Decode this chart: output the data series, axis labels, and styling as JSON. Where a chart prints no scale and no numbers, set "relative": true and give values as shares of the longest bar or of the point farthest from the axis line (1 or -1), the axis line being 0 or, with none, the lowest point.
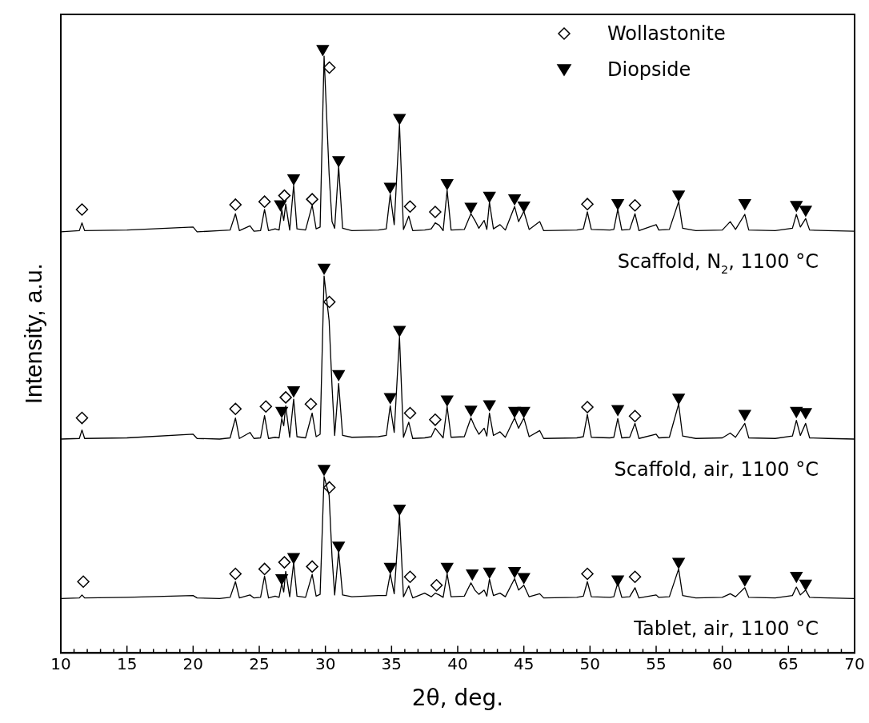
{
  "chart_data": {
    "type": "line",
    "relative": true,
    "xlabel": "2θ, deg.",
    "ylabel": "Intensity, a.u.",
    "xlim": [
      10,
      70
    ],
    "xticks": [
      10,
      {
        "value": 11,
        "label": null
      },
      {
        "value": 12,
        "label": null
      },
      {
        "value": 13,
        "label": null
      },
      {
        "value": 14,
        "label": null
      },
      15,
      {
        "value": 16,
        "label": null
      },
      {
        "value": 17,
        "label": null
      },
      {
        "value": 18,
        "label": null
      },
      {
        "value": 19,
        "label": null
      },
      20,
      {
        "value": 21,
        "label": null
      },
      {
        "value": 22,
        "label": null
      },
      {
        "value": 23,
        "label": null
      },
      {
        "value": 24,
        "label": null
      },
      25,
      {
        "value": 26,
        "label": null
      },
      {
        "value": 27,
        "label": null
      },
      {
        "value": 28,
        "label": null
      },
      {
        "value": 29,
        "label": null
      },
      30,
      {
        "value": 31,
        "label": null
      },
      {
        "value": 32,
        "label": null
      },
      {
        "value": 33,
        "label": null
      },
      {
        "value": 34,
        "label": null
      },
      35,
      {
        "value": 36,
        "label": null
      },
      {
        "value": 37,
        "label": null
      },
      {
        "value": 38,
        "label": null
      },
      {
        "value": 39,
        "label": null
      },
      40,
      {
        "value": 41,
        "label": null
      },
      {
        "value": 42,
        "label": null
      },
      {
        "value": 43,
        "label": null
      },
      {
        "value": 44,
        "label": null
      },
      45,
      {
        "value": 46,
        "label": null
      },
      {
        "value": 47,
        "label": null
      },
      {
        "value": 48,
        "label": null
      },
      {
        "value": 49,
        "label": null
      },
      50,
      {
        "value": 51,
        "label": null
      },
      {
        "value": 52,
        "label": null
      },
      {
        "value": 53,
        "label": null
      },
      {
        "value": 54,
        "label": null
      },
      55,
      {
        "value": 56,
        "label": null
      },
      {
        "value": 57,
        "label": null
      },
      {
        "value": 58,
        "label": null
      },
      {
        "value": 59,
        "label": null
      },
      60,
      {
        "value": 61,
        "label": null
      },
      {
        "value": 62,
        "label": null
      },
      {
        "value": 63,
        "label": null
      },
      {
        "value": 64,
        "label": null
      },
      65,
      {
        "value": 66,
        "label": null
      },
      {
        "value": 67,
        "label": null
      },
      {
        "value": 68,
        "label": null
      },
      {
        "value": 69,
        "label": null
      },
      70
    ],
    "legend": "top right",
    "grid": false,
    "line_style": "solid",
    "x": [
      10,
      11.4,
      11.6,
      11.8,
      15,
      20,
      20.3,
      22,
      22.8,
      23.2,
      23.5,
      24.3,
      24.6,
      25.1,
      25.4,
      25.7,
      26.2,
      26.5,
      26.7,
      26.85,
      27,
      27.3,
      27.6,
      27.85,
      28.5,
      29,
      29.3,
      29.6,
      29.9,
      30.28,
      30.5,
      30.7,
      31,
      31.3,
      32,
      34,
      34.6,
      34.9,
      35.2,
      35.6,
      35.9,
      36.3,
      36.6,
      37.5,
      38,
      38.3,
      38.6,
      38.9,
      39.2,
      39.5,
      40.5,
      41,
      41.3,
      41.6,
      42,
      42.2,
      42.4,
      42.7,
      43.2,
      43.6,
      44.3,
      44.6,
      45,
      45.4,
      46.2,
      46.5,
      49,
      49.5,
      49.8,
      50.1,
      51.5,
      51.8,
      52.1,
      52.4,
      53,
      53.4,
      53.7,
      55,
      55.2,
      56,
      56.7,
      57,
      58,
      60,
      60.6,
      61,
      61.7,
      62,
      64,
      65.3,
      65.6,
      65.9,
      66.3,
      66.6,
      68,
      70
    ],
    "series": [
      {
        "name": "Scaffold, N$_{2}$, 1100 °C",
        "marker": "none",
        "color": "#000000",
        "values": [
          0.697,
          0.699,
          0.712,
          0.699,
          0.7,
          0.705,
          0.697,
          0.699,
          0.7,
          0.727,
          0.699,
          0.707,
          0.698,
          0.699,
          0.734,
          0.699,
          0.702,
          0.7,
          0.734,
          0.716,
          0.743,
          0.7,
          0.774,
          0.702,
          0.7,
          0.741,
          0.702,
          0.705,
          0.988,
          0.793,
          0.714,
          0.703,
          0.805,
          0.703,
          0.699,
          0.7,
          0.702,
          0.759,
          0.709,
          0.874,
          0.701,
          0.723,
          0.699,
          0.7,
          0.702,
          0.712,
          0.708,
          0.699,
          0.766,
          0.7,
          0.701,
          0.727,
          0.716,
          0.703,
          0.716,
          0.701,
          0.746,
          0.702,
          0.709,
          0.7,
          0.739,
          0.714,
          0.731,
          0.701,
          0.714,
          0.699,
          0.7,
          0.702,
          0.73,
          0.701,
          0.7,
          0.701,
          0.734,
          0.7,
          0.701,
          0.727,
          0.699,
          0.709,
          0.7,
          0.701,
          0.747,
          0.703,
          0.699,
          0.7,
          0.714,
          0.701,
          0.726,
          0.7,
          0.699,
          0.703,
          0.726,
          0.705,
          0.719,
          0.7,
          0.699,
          0.698
        ]
      },
      {
        "name": "Scaffold, air, 1100 °C",
        "marker": "none",
        "color": "#000000",
        "values": [
          0.354,
          0.355,
          0.369,
          0.355,
          0.356,
          0.362,
          0.355,
          0.354,
          0.356,
          0.389,
          0.355,
          0.365,
          0.355,
          0.356,
          0.393,
          0.355,
          0.357,
          0.356,
          0.388,
          0.376,
          0.409,
          0.357,
          0.42,
          0.358,
          0.356,
          0.397,
          0.358,
          0.362,
          0.624,
          0.55,
          0.442,
          0.36,
          0.446,
          0.36,
          0.357,
          0.358,
          0.36,
          0.409,
          0.365,
          0.523,
          0.357,
          0.382,
          0.355,
          0.356,
          0.358,
          0.372,
          0.364,
          0.356,
          0.408,
          0.357,
          0.358,
          0.389,
          0.374,
          0.362,
          0.372,
          0.359,
          0.397,
          0.36,
          0.366,
          0.357,
          0.389,
          0.372,
          0.389,
          0.358,
          0.368,
          0.355,
          0.356,
          0.358,
          0.395,
          0.357,
          0.356,
          0.357,
          0.388,
          0.356,
          0.357,
          0.38,
          0.355,
          0.362,
          0.356,
          0.357,
          0.412,
          0.359,
          0.355,
          0.356,
          0.364,
          0.357,
          0.38,
          0.356,
          0.355,
          0.359,
          0.385,
          0.36,
          0.38,
          0.356,
          0.355,
          0.354
        ]
      },
      {
        "name": "Tablet, air, 1100 °C",
        "marker": "none",
        "color": "#000000",
        "values": [
          0.09,
          0.091,
          0.096,
          0.091,
          0.092,
          0.095,
          0.091,
          0.09,
          0.092,
          0.118,
          0.091,
          0.096,
          0.091,
          0.092,
          0.127,
          0.091,
          0.094,
          0.092,
          0.115,
          0.101,
          0.135,
          0.093,
          0.149,
          0.094,
          0.092,
          0.13,
          0.094,
          0.097,
          0.292,
          0.261,
          0.159,
          0.096,
          0.168,
          0.096,
          0.093,
          0.095,
          0.095,
          0.131,
          0.098,
          0.228,
          0.093,
          0.111,
          0.091,
          0.099,
          0.093,
          0.099,
          0.096,
          0.092,
          0.131,
          0.093,
          0.094,
          0.116,
          0.104,
          0.097,
          0.104,
          0.094,
          0.122,
          0.095,
          0.099,
          0.093,
          0.123,
          0.104,
          0.112,
          0.093,
          0.098,
          0.091,
          0.092,
          0.094,
          0.118,
          0.093,
          0.092,
          0.093,
          0.116,
          0.092,
          0.093,
          0.108,
          0.091,
          0.096,
          0.092,
          0.093,
          0.139,
          0.095,
          0.091,
          0.092,
          0.098,
          0.093,
          0.108,
          0.092,
          0.091,
          0.095,
          0.109,
          0.096,
          0.104,
          0.092,
          0.091,
          0.09
        ]
      },
      {
        "name": "Wollastonite",
        "type": "scatter",
        "marker": "diamond",
        "color": "#000000",
        "x": [
          11.6,
          23.2,
          25.4,
          26.9,
          29.0,
          30.3,
          36.4,
          38.3,
          49.8,
          53.4,
          11.6,
          23.2,
          25.5,
          27.0,
          28.9,
          30.3,
          36.4,
          38.3,
          49.8,
          53.4,
          11.7,
          23.2,
          25.4,
          26.9,
          29.0,
          30.3,
          36.4,
          38.4,
          49.8,
          53.4
        ],
        "values": [
          0.734,
          0.742,
          0.747,
          0.757,
          0.751,
          0.969,
          0.739,
          0.73,
          0.743,
          0.741,
          0.389,
          0.404,
          0.408,
          0.423,
          0.412,
          0.581,
          0.397,
          0.386,
          0.407,
          0.392,
          0.118,
          0.131,
          0.139,
          0.15,
          0.143,
          0.274,
          0.126,
          0.112,
          0.131,
          0.126
        ]
      },
      {
        "name": "Diopside",
        "type": "scatter",
        "marker": "triangle",
        "color": "#000000",
        "x": [
          26.6,
          27.6,
          29.8,
          31.0,
          34.9,
          35.6,
          39.2,
          41.0,
          42.4,
          44.3,
          45.0,
          52.1,
          56.7,
          61.7,
          65.6,
          66.3,
          26.7,
          27.6,
          29.9,
          31.0,
          34.9,
          35.6,
          39.2,
          41.0,
          42.4,
          44.3,
          45.0,
          52.1,
          56.7,
          61.7,
          65.6,
          66.3,
          26.7,
          27.6,
          29.9,
          31.0,
          34.9,
          35.6,
          39.2,
          41.1,
          42.4,
          44.3,
          45.0,
          52.1,
          56.7,
          61.7,
          65.6,
          66.3
        ],
        "values": [
          0.743,
          0.786,
          1.0,
          0.816,
          0.772,
          0.886,
          0.778,
          0.739,
          0.757,
          0.753,
          0.741,
          0.745,
          0.759,
          0.745,
          0.742,
          0.734,
          0.401,
          0.435,
          0.638,
          0.462,
          0.424,
          0.535,
          0.42,
          0.403,
          0.412,
          0.401,
          0.401,
          0.404,
          0.423,
          0.396,
          0.401,
          0.399,
          0.124,
          0.159,
          0.305,
          0.178,
          0.143,
          0.239,
          0.143,
          0.132,
          0.135,
          0.136,
          0.126,
          0.122,
          0.151,
          0.122,
          0.128,
          0.115
        ]
      }
    ]
  }
}
